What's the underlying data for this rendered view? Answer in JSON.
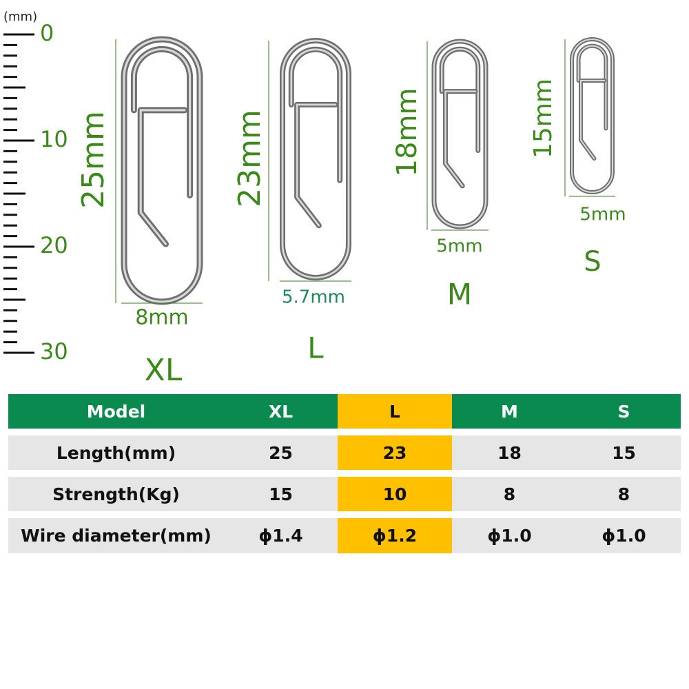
{
  "ruler": {
    "unit": "(mm)",
    "labels": [
      "0",
      "10",
      "20",
      "30"
    ]
  },
  "items": [
    {
      "length": "25mm",
      "width": "8mm",
      "size": "XL"
    },
    {
      "length": "23mm",
      "width": "5.7mm",
      "size": "L"
    },
    {
      "length": "18mm",
      "width": "5mm",
      "size": "M"
    },
    {
      "length": "15mm",
      "width": "5mm",
      "size": "S"
    }
  ],
  "table": {
    "header": [
      "Model",
      "XL",
      "L",
      "M",
      "S"
    ],
    "rows": [
      [
        "Length(mm)",
        "25",
        "23",
        "18",
        "15"
      ],
      [
        "Strength(Kg)",
        "15",
        "10",
        "8",
        "8"
      ],
      [
        "Wire diameter(mm)",
        "ϕ1.4",
        "ϕ1.2",
        "ϕ1.0",
        "ϕ1.0"
      ]
    ]
  }
}
